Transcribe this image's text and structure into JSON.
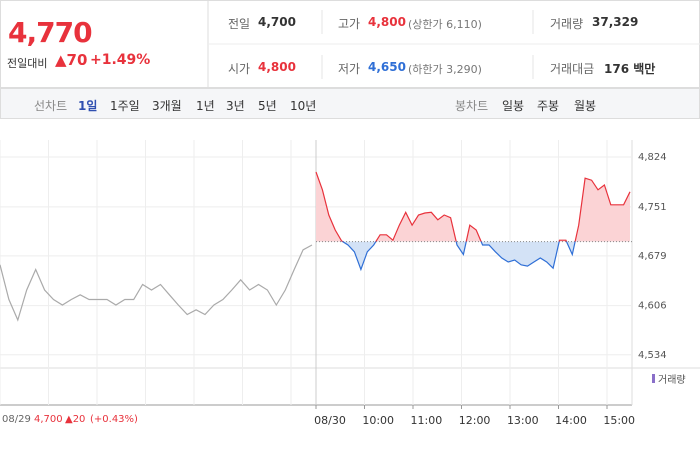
{
  "header": {
    "price": "4,770",
    "change_label": "전일대비",
    "change": "▲70",
    "change_pct": "+1.49%",
    "rows": [
      [
        {
          "label": "전일",
          "value": "4,700"
        },
        {
          "label": "고가",
          "value": "4,800",
          "note": "(상한가 6,110)"
        },
        {
          "label": "거래량",
          "value": "37,329"
        }
      ],
      [
        {
          "label": "시가",
          "value": "4,800"
        },
        {
          "label": "저가",
          "value": "4,650",
          "note": "(하한가 3,290)"
        },
        {
          "label": "거래대금",
          "value": "176 백만"
        }
      ]
    ]
  },
  "tabs": {
    "line_label": "선차트",
    "line": [
      "1일",
      "1주일",
      "3개월",
      "1년",
      "3년",
      "5년",
      "10년"
    ],
    "candle_label": "봉차트",
    "candle": [
      "일봉",
      "주봉",
      "월봉"
    ]
  },
  "footer": {
    "date": "08/29",
    "price": "4,700",
    "change": "▲20",
    "change_pct": "(+0.43%)"
  },
  "chart_data": {
    "type": "line",
    "volume_legend": "거래량",
    "x_labels": [
      "08/30",
      "10:00",
      "11:00",
      "12:00",
      "13:00",
      "14:00",
      "15:00"
    ],
    "ylim": [
      4519,
      4849
    ],
    "yticks": [
      {
        "value": 4824,
        "label": "4,824"
      },
      {
        "value": 4751,
        "label": "4,751"
      },
      {
        "value": 4679,
        "label": "4,679"
      },
      {
        "value": 4606,
        "label": "4,606"
      },
      {
        "value": 4534,
        "label": "4,534"
      }
    ],
    "baseline": 4700,
    "series": [
      {
        "name": "08/29",
        "color": "#aaaaaa",
        "values": [
          4666,
          4615,
          4585,
          4629,
          4659,
          4629,
          4615,
          4607,
          4615,
          4622,
          4615,
          4615,
          4615,
          4607,
          4615,
          4615,
          4637,
          4629,
          4637,
          4622,
          4607,
          4593,
          4600,
          4593,
          4607,
          4615,
          4629,
          4644,
          4629,
          4637,
          4629,
          4607,
          4629,
          4659,
          4688,
          4695
        ]
      },
      {
        "name": "08/30",
        "up_color": "#e8323c",
        "down_color": "#2f6fd6",
        "values": [
          4802,
          4776,
          4739,
          4717,
          4701,
          4695,
          4685,
          4659,
          4685,
          4695,
          4710,
          4710,
          4702,
          4724,
          4743,
          4724,
          4739,
          4742,
          4743,
          4732,
          4739,
          4735,
          4695,
          4681,
          4724,
          4717,
          4695,
          4695,
          4685,
          4676,
          4670,
          4673,
          4666,
          4664,
          4670,
          4676,
          4670,
          4661,
          4702,
          4702,
          4681,
          4724,
          4793,
          4790,
          4776,
          4783,
          4754,
          4754,
          4754,
          4773
        ]
      }
    ]
  }
}
